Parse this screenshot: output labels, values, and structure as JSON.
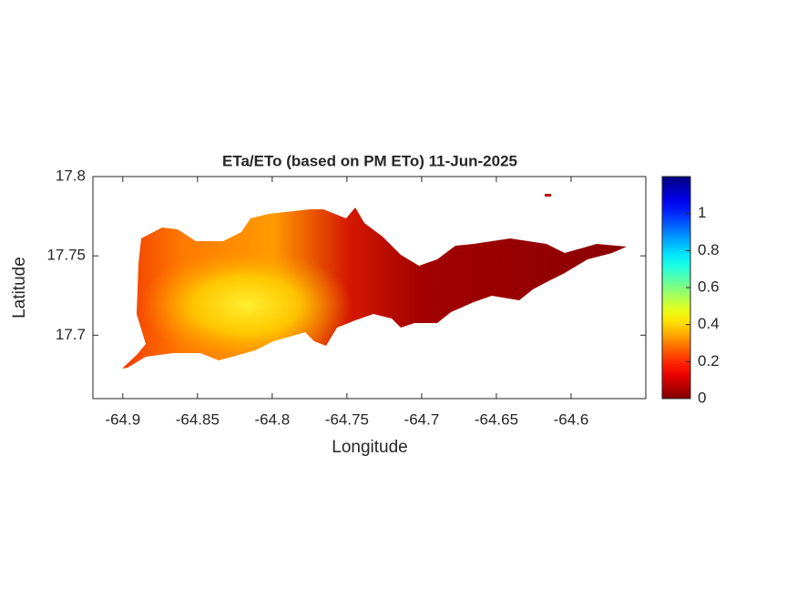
{
  "chart_data": {
    "type": "map",
    "title": "ETa/ETo (based on PM ETo) 11-Jun-2025",
    "xlabel": "Longitude",
    "ylabel": "Latitude",
    "xlim": [
      -64.92,
      -64.55
    ],
    "xticks": [
      -64.9,
      -64.85,
      -64.8,
      -64.75,
      -64.7,
      -64.65,
      -64.6
    ],
    "ylim": [
      17.66,
      17.8
    ],
    "yticks": [
      17.7,
      17.75,
      17.8
    ],
    "colorbar": {
      "clim": [
        0,
        1.2
      ],
      "ticks": [
        0,
        0.2,
        0.4,
        0.6,
        0.8,
        1
      ],
      "colormap": "jet",
      "reversed": true
    }
  }
}
